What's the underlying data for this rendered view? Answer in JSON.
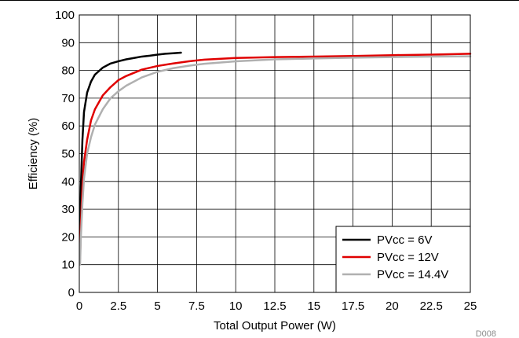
{
  "chart_data": {
    "type": "line",
    "title": "",
    "xlabel": "Total Output Power (W)",
    "ylabel": "Efficiency (%)",
    "xlim": [
      0,
      25
    ],
    "ylim": [
      0,
      100
    ],
    "x_ticks": [
      "0",
      "2.5",
      "5",
      "7.5",
      "10",
      "12.5",
      "15",
      "17.5",
      "20",
      "22.5",
      "25"
    ],
    "y_ticks": [
      "0",
      "10",
      "20",
      "30",
      "40",
      "50",
      "60",
      "70",
      "80",
      "90",
      "100"
    ],
    "grid": true,
    "legend_position": "bottom-right",
    "figure_code": "D008",
    "series": [
      {
        "name": "PVcc = 6V",
        "color": "#000000",
        "x": [
          0.05,
          0.1,
          0.2,
          0.3,
          0.5,
          0.75,
          1.0,
          1.5,
          2.0,
          2.5,
          3.0,
          3.5,
          4.0,
          4.5,
          5.0,
          5.5,
          6.0,
          6.5
        ],
        "y": [
          20,
          38,
          55,
          65,
          72,
          76,
          78.5,
          81,
          82.5,
          83.3,
          84,
          84.5,
          85,
          85.3,
          85.7,
          86,
          86.2,
          86.4
        ]
      },
      {
        "name": "PVcc = 12V",
        "color": "#e00000",
        "x": [
          0.05,
          0.1,
          0.2,
          0.3,
          0.5,
          0.75,
          1.0,
          1.5,
          2.0,
          2.5,
          3.0,
          4.0,
          5.0,
          6.0,
          7.0,
          8.0,
          10.0,
          12.5,
          15.0,
          17.5,
          20.0,
          22.5,
          25.0
        ],
        "y": [
          12,
          24,
          38,
          47,
          55,
          62,
          66,
          71,
          74,
          76.5,
          78,
          80.3,
          81.6,
          82.5,
          83.3,
          83.9,
          84.5,
          84.8,
          85,
          85.2,
          85.5,
          85.7,
          86
        ]
      },
      {
        "name": "PVcc = 14.4V",
        "color": "#b0b0b0",
        "x": [
          0.05,
          0.1,
          0.2,
          0.3,
          0.5,
          0.75,
          1.0,
          1.5,
          2.0,
          2.5,
          3.0,
          4.0,
          5.0,
          6.0,
          7.0,
          8.0,
          10.0,
          12.5,
          15.0,
          17.5,
          20.0,
          22.5,
          25.0
        ],
        "y": [
          10,
          20,
          32,
          41,
          50,
          56,
          60.5,
          66,
          70,
          72.5,
          74.5,
          77.5,
          79.5,
          80.8,
          81.7,
          82.4,
          83.3,
          84,
          84.3,
          84.6,
          84.8,
          85,
          85.1
        ]
      }
    ]
  }
}
